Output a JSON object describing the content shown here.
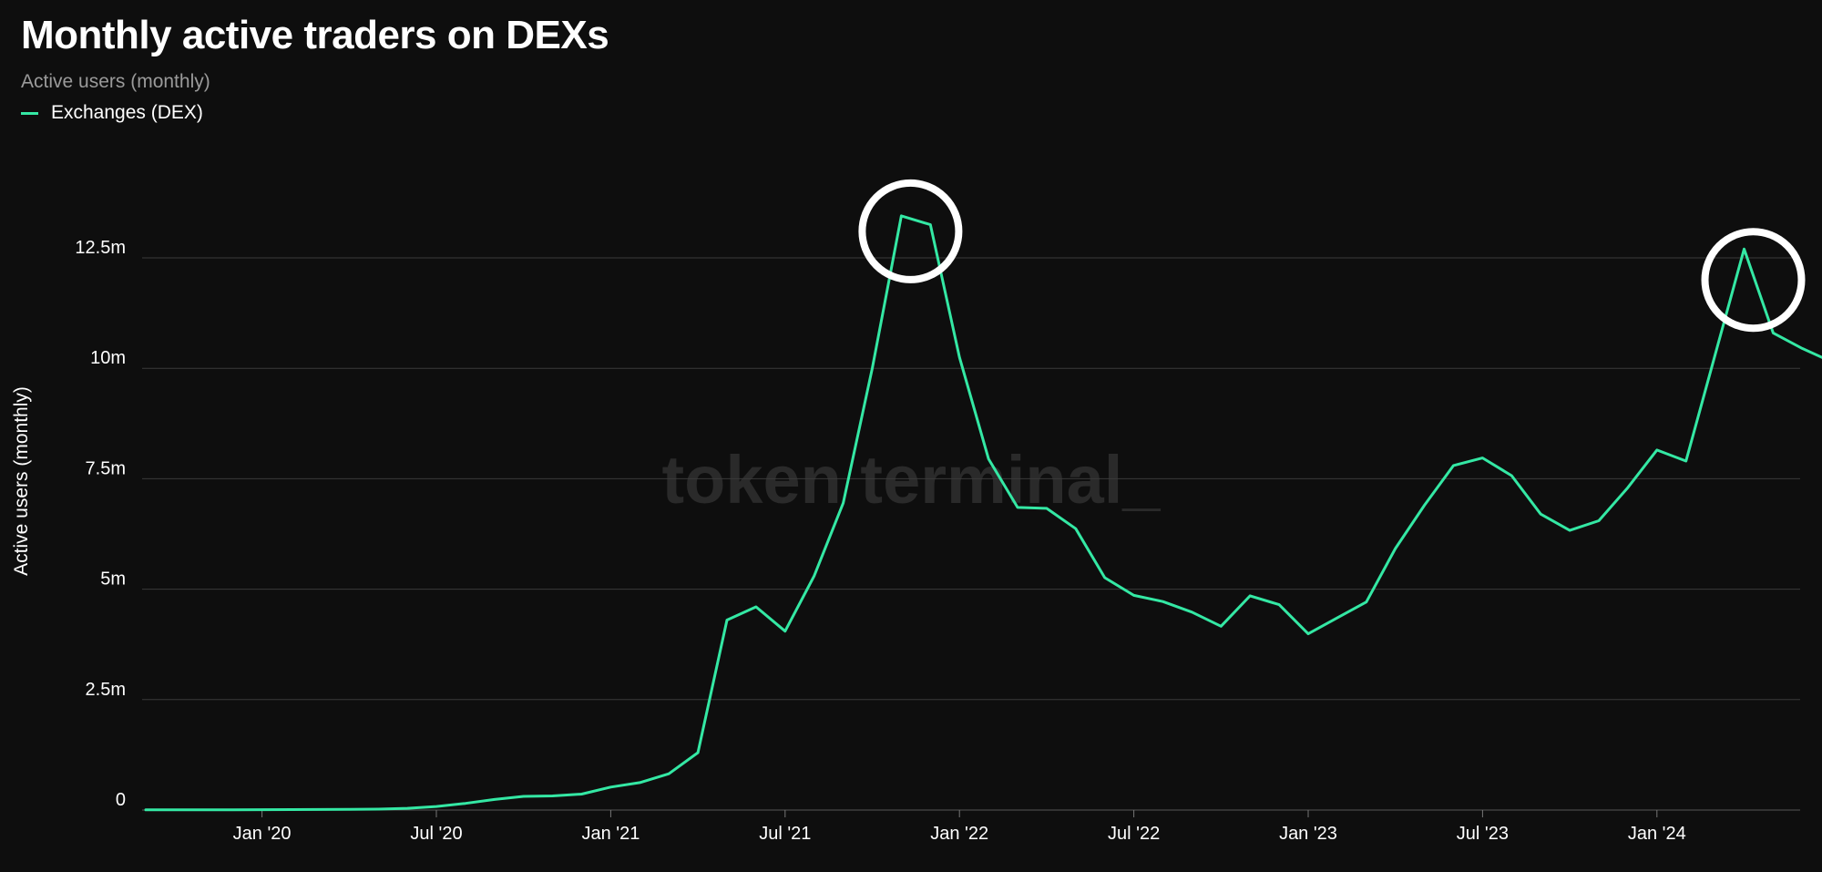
{
  "header": {
    "title": "Monthly active traders on DEXs",
    "subtitle": "Active users (monthly)",
    "legend_label": "Exchanges (DEX)"
  },
  "watermark": "token terminal_",
  "colors": {
    "background": "#0e0e0e",
    "series": "#34e8a4",
    "grid": "#3a3a3a",
    "highlight_circle": "#ffffff"
  },
  "chart_data": {
    "type": "line",
    "title": "Monthly active traders on DEXs",
    "ylabel": "Active users (monthly)",
    "xlabel": "",
    "ylim": [
      0,
      14000000
    ],
    "grid": true,
    "legend_position": "top-left",
    "y_ticks": [
      {
        "value": 0,
        "label": "0"
      },
      {
        "value": 2500000,
        "label": "2.5m"
      },
      {
        "value": 5000000,
        "label": "5m"
      },
      {
        "value": 7500000,
        "label": "7.5m"
      },
      {
        "value": 10000000,
        "label": "10m"
      },
      {
        "value": 12500000,
        "label": "12.5m"
      }
    ],
    "x_ticks": [
      {
        "date": "2020-01",
        "label": "Jan '20"
      },
      {
        "date": "2020-07",
        "label": "Jul '20"
      },
      {
        "date": "2021-01",
        "label": "Jan '21"
      },
      {
        "date": "2021-07",
        "label": "Jul '21"
      },
      {
        "date": "2022-01",
        "label": "Jan '22"
      },
      {
        "date": "2022-07",
        "label": "Jul '22"
      },
      {
        "date": "2023-01",
        "label": "Jan '23"
      },
      {
        "date": "2023-07",
        "label": "Jul '23"
      },
      {
        "date": "2024-01",
        "label": "Jan '24"
      }
    ],
    "x": [
      "2019-09",
      "2019-10",
      "2019-11",
      "2019-12",
      "2020-01",
      "2020-02",
      "2020-03",
      "2020-04",
      "2020-05",
      "2020-06",
      "2020-07",
      "2020-08",
      "2020-09",
      "2020-10",
      "2020-11",
      "2020-12",
      "2021-01",
      "2021-02",
      "2021-03",
      "2021-04",
      "2021-05",
      "2021-06",
      "2021-07",
      "2021-08",
      "2021-09",
      "2021-10",
      "2021-11",
      "2021-12",
      "2022-01",
      "2022-02",
      "2022-03",
      "2022-04",
      "2022-05",
      "2022-06",
      "2022-07",
      "2022-08",
      "2022-09",
      "2022-10",
      "2022-11",
      "2022-12",
      "2023-01",
      "2023-02",
      "2023-03",
      "2023-04",
      "2023-05",
      "2023-06",
      "2023-07",
      "2023-08",
      "2023-09",
      "2023-10",
      "2023-11",
      "2023-12",
      "2024-01",
      "2024-02",
      "2024-03",
      "2024-04",
      "2024-05",
      "2024-06",
      "2024-07"
    ],
    "series": [
      {
        "name": "Exchanges (DEX)",
        "color": "#34e8a4",
        "values": [
          5000,
          5000,
          6000,
          7000,
          8000,
          10000,
          12000,
          15000,
          20000,
          40000,
          80000,
          150000,
          240000,
          310000,
          320000,
          360000,
          520000,
          620000,
          820000,
          1300000,
          4300000,
          4600000,
          4050000,
          5300000,
          6950000,
          10000000,
          13450000,
          13250000,
          10250000,
          7950000,
          6850000,
          6830000,
          6370000,
          5260000,
          4860000,
          4720000,
          4480000,
          4160000,
          4850000,
          4650000,
          3990000,
          4350000,
          4710000,
          5920000,
          6900000,
          7800000,
          7970000,
          7570000,
          6700000,
          6330000,
          6550000,
          7300000,
          8150000,
          7900000,
          10300000,
          12700000,
          10800000,
          10450000,
          10150000
        ]
      }
    ],
    "highlights": [
      {
        "date": "2021-11",
        "value": 13100000,
        "shape": "circle"
      },
      {
        "date": "2024-04",
        "value": 12000000,
        "shape": "circle"
      }
    ]
  }
}
